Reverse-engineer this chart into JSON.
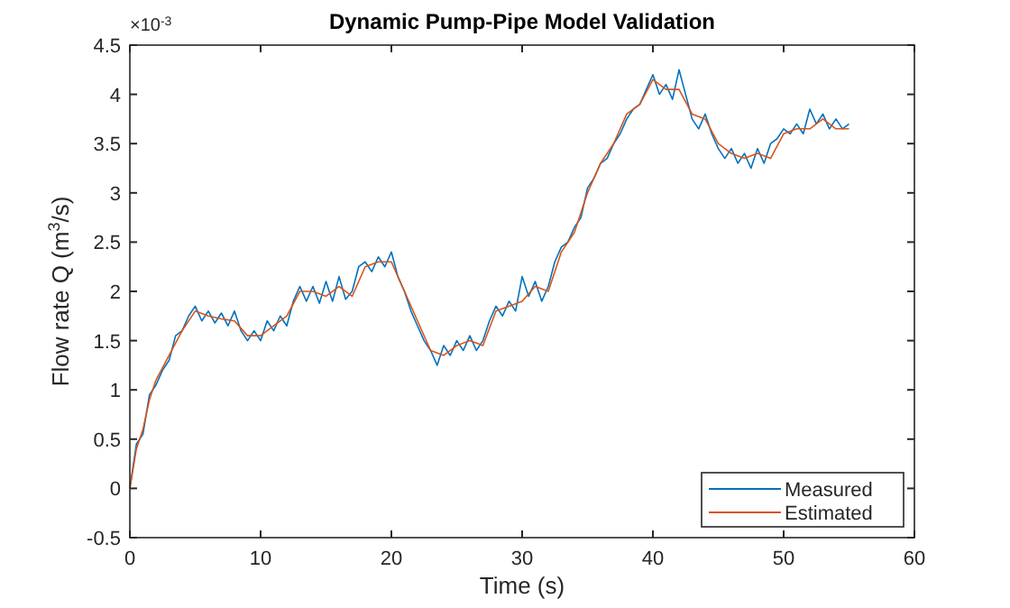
{
  "chart_data": {
    "type": "line",
    "title": "Dynamic Pump-Pipe Model Validation",
    "xlabel": "Time (s)",
    "ylabel": "Flow  rate  Q  (m$^{3}$/s)",
    "annotations": [
      "×10$^{-3}$"
    ],
    "xlim": [
      0,
      60
    ],
    "xticks": [
      0,
      10,
      20,
      30,
      40,
      50,
      60
    ],
    "ylim": [
      -0.5,
      4.5
    ],
    "yticks": [
      -0.5,
      0,
      0.5,
      1,
      1.5,
      2,
      2.5,
      3,
      3.5,
      4,
      4.5
    ],
    "grid": false,
    "legend": "bottom right",
    "line_style": "solid",
    "series": [
      {
        "name": "Measured",
        "color": "#0072bd",
        "x": [
          0,
          0.5,
          1,
          1.5,
          2,
          2.5,
          3,
          3.5,
          4,
          4.5,
          5,
          5.5,
          6,
          6.5,
          7,
          7.5,
          8,
          8.5,
          9,
          9.5,
          10,
          10.5,
          11,
          11.5,
          12,
          12.5,
          13,
          13.5,
          14,
          14.5,
          15,
          15.5,
          16,
          16.5,
          17,
          17.5,
          18,
          18.5,
          19,
          19.5,
          20,
          20.5,
          21,
          21.5,
          22,
          22.5,
          23,
          23.5,
          24,
          24.5,
          25,
          25.5,
          26,
          26.5,
          27,
          27.5,
          28,
          28.5,
          29,
          29.5,
          30,
          30.5,
          31,
          31.5,
          32,
          32.5,
          33,
          33.5,
          34,
          34.5,
          35,
          35.5,
          36,
          36.5,
          37,
          37.5,
          38,
          38.5,
          39,
          39.5,
          40,
          40.5,
          41,
          41.5,
          42,
          42.5,
          43,
          43.5,
          44,
          44.5,
          45,
          45.5,
          46,
          46.5,
          47,
          47.5,
          48,
          48.5,
          49,
          49.5,
          50,
          50.5,
          51,
          51.5,
          52,
          52.5,
          53,
          53.5,
          54,
          54.5,
          55
        ],
        "values": [
          0,
          0.45,
          0.55,
          0.95,
          1.05,
          1.2,
          1.3,
          1.55,
          1.6,
          1.75,
          1.85,
          1.7,
          1.8,
          1.68,
          1.78,
          1.65,
          1.8,
          1.6,
          1.5,
          1.6,
          1.5,
          1.7,
          1.6,
          1.75,
          1.65,
          1.9,
          2.05,
          1.9,
          2.05,
          1.88,
          2.1,
          1.9,
          2.15,
          1.92,
          2,
          2.25,
          2.3,
          2.2,
          2.35,
          2.25,
          2.4,
          2.15,
          2,
          1.8,
          1.65,
          1.5,
          1.4,
          1.25,
          1.45,
          1.35,
          1.5,
          1.4,
          1.55,
          1.4,
          1.5,
          1.7,
          1.85,
          1.75,
          1.9,
          1.8,
          2.15,
          1.95,
          2.1,
          1.9,
          2.05,
          2.3,
          2.45,
          2.5,
          2.65,
          2.75,
          3.05,
          3.15,
          3.3,
          3.35,
          3.5,
          3.6,
          3.75,
          3.85,
          3.9,
          4.05,
          4.2,
          4,
          4.1,
          3.95,
          4.25,
          4,
          3.75,
          3.65,
          3.8,
          3.6,
          3.45,
          3.35,
          3.45,
          3.3,
          3.4,
          3.25,
          3.45,
          3.3,
          3.5,
          3.55,
          3.65,
          3.6,
          3.7,
          3.6,
          3.85,
          3.7,
          3.8,
          3.65,
          3.75,
          3.65,
          3.7
        ]
      },
      {
        "name": "Estimated",
        "color": "#d95319",
        "x": [
          0,
          0.5,
          1,
          1.5,
          2,
          3,
          4,
          5,
          6,
          7,
          8,
          9,
          10,
          11,
          12,
          13,
          14,
          15,
          16,
          17,
          18,
          19,
          20,
          21,
          22,
          23,
          24,
          25,
          26,
          27,
          28,
          29,
          30,
          31,
          32,
          33,
          34,
          35,
          36,
          37,
          38,
          39,
          40,
          41,
          42,
          43,
          44,
          45,
          46,
          47,
          48,
          49,
          50,
          51,
          52,
          53,
          54,
          55
        ],
        "values": [
          0,
          0.4,
          0.6,
          0.9,
          1.1,
          1.35,
          1.6,
          1.8,
          1.75,
          1.72,
          1.7,
          1.55,
          1.55,
          1.65,
          1.75,
          2,
          2,
          1.95,
          2.05,
          1.95,
          2.25,
          2.3,
          2.3,
          2,
          1.7,
          1.4,
          1.35,
          1.45,
          1.5,
          1.45,
          1.8,
          1.85,
          1.9,
          2.05,
          2,
          2.4,
          2.6,
          3,
          3.3,
          3.5,
          3.8,
          3.9,
          4.15,
          4.05,
          4.05,
          3.8,
          3.75,
          3.5,
          3.4,
          3.35,
          3.4,
          3.35,
          3.6,
          3.65,
          3.65,
          3.75,
          3.65,
          3.65
        ]
      }
    ]
  }
}
